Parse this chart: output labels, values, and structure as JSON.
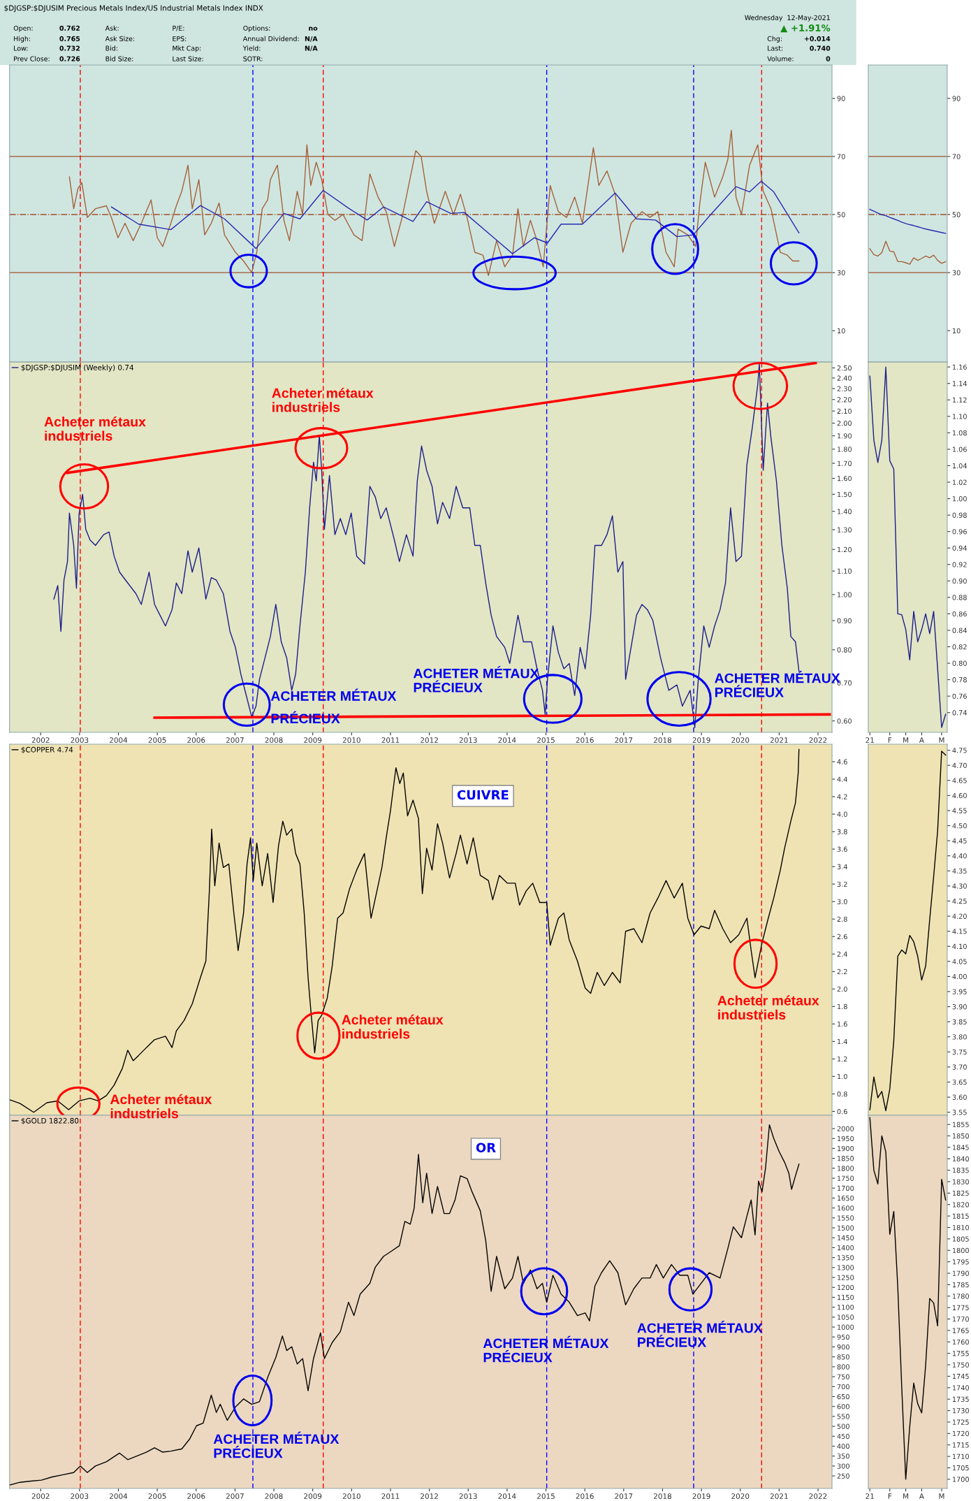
{
  "chart_data": [
    {
      "type": "line",
      "title": "$DJGSP:$DJUSIM Precious Metals Index/US Industrial Metals Index INDX",
      "annotations": [
        "Open:",
        "0.762",
        "Ask:",
        "P/E:",
        "Options:",
        "no",
        "High:",
        "0.765",
        "Ask Size:",
        "EPS:",
        "Annual Dividend:",
        "N/A",
        "Low:",
        "0.732",
        "Bid:",
        "Mkt Cap:",
        "Yield:",
        "N/A",
        "Prev Close:",
        "0.726",
        "Bid Size:",
        "Last Size:",
        "SOTR:",
        "Wednesday  12-May-2021",
        "▲ +1.91%",
        "Chg:",
        "+0.014",
        "Last:",
        "0.740",
        "Volume:",
        "0"
      ],
      "series": [
        {
          "color": "#a5603a",
          "x": [
            2002.74,
            2002.85,
            2002.96,
            2003.06,
            2003.2,
            2003.41,
            2003.69,
            2003.82,
            2003.99,
            2004.17,
            2004.38,
            2004.59,
            2004.84,
            2005.0,
            2005.14,
            2005.35,
            2005.49,
            2005.63,
            2005.79,
            2005.9,
            2006.07,
            2006.22,
            2006.39,
            2006.59,
            2006.73,
            2007.01,
            2007.22,
            2007.43,
            2007.56,
            2007.7,
            2007.84,
            2007.91,
            2008.09,
            2008.26,
            2008.4,
            2008.6,
            2008.74,
            2008.85,
            2008.95,
            2009.09,
            2009.23,
            2009.39,
            2009.57,
            2009.78,
            2010.06,
            2010.27,
            2010.47,
            2010.68,
            2010.89,
            2011.1,
            2011.3,
            2011.65,
            2011.79,
            2011.93,
            2012.13,
            2012.41,
            2012.62,
            2012.8,
            2012.97,
            2013.17,
            2013.38,
            2013.52,
            2013.73,
            2013.94,
            2014.14,
            2014.28,
            2014.42,
            2014.6,
            2014.77,
            2014.93,
            2015.11,
            2015.32,
            2015.53,
            2015.74,
            2015.94,
            2016.22,
            2016.36,
            2016.57,
            2016.78,
            2016.98,
            2017.19,
            2017.47,
            2017.68,
            2017.88,
            2018.09,
            2018.3,
            2018.4,
            2018.65,
            2018.85,
            2018.96,
            2019.1,
            2019.34,
            2019.55,
            2019.68,
            2019.77,
            2019.89,
            2020.03,
            2020.24,
            2020.45,
            2020.59,
            2020.79,
            2021.03,
            2021.21,
            2021.35,
            2021.51
          ],
          "values": [
            63,
            52,
            59,
            61,
            49,
            52,
            53,
            49,
            42,
            47,
            41,
            47,
            55,
            42,
            39,
            47,
            53,
            58,
            67,
            52,
            62,
            43,
            47,
            54,
            43,
            37,
            34,
            30,
            37,
            52,
            55,
            62,
            67,
            48,
            41,
            58,
            50,
            74,
            60,
            68,
            62,
            50,
            48,
            50,
            43,
            41,
            64,
            56,
            51,
            39,
            49,
            72,
            70,
            58,
            47,
            58,
            50,
            57,
            49,
            37,
            36,
            29,
            41,
            32,
            36,
            52,
            39,
            48,
            41,
            32,
            60,
            51,
            49,
            56,
            47,
            73,
            60,
            65,
            57,
            37,
            47,
            51,
            49,
            51,
            37,
            32,
            45,
            43,
            39,
            54,
            68,
            56,
            63,
            69,
            79,
            56,
            50,
            67,
            74,
            58,
            52,
            37,
            36,
            34,
            34
          ]
        },
        {
          "color": "#2a2ab0",
          "x": [
            2003.82,
            2004.52,
            2005.35,
            2006.11,
            2006.73,
            2007.54,
            2008.26,
            2008.67,
            2009.27,
            2009.92,
            2010.4,
            2010.82,
            2011.58,
            2011.93,
            2012.55,
            2012.9,
            2013.66,
            2014.14,
            2014.7,
            2015.04,
            2015.39,
            2015.94,
            2016.78,
            2017.33,
            2017.82,
            2018.37,
            2018.79,
            2019.2,
            2019.89,
            2020.24,
            2020.54,
            2020.86,
            2021.51
          ],
          "values": [
            52.6,
            46.7,
            44.8,
            53.1,
            48.5,
            38.3,
            50.4,
            48.5,
            58.3,
            52.2,
            48.1,
            52.6,
            47.6,
            54.4,
            50.4,
            50.7,
            42.0,
            36.5,
            42.0,
            40.2,
            46.7,
            46.7,
            57.4,
            48.5,
            48.1,
            42.4,
            43.0,
            49.4,
            59.6,
            57.8,
            61.5,
            57.8,
            43.7
          ]
        }
      ],
      "xlim": [
        2001.2,
        2022.36
      ],
      "xticks": [
        2002,
        2003,
        2004,
        2005,
        2006,
        2007,
        2008,
        2009,
        2010,
        2011,
        2012,
        2013,
        2014,
        2015,
        2016,
        2017,
        2018,
        2019,
        2020,
        2021,
        2022
      ],
      "ylim": [
        -0.8,
        101.5
      ],
      "yticks": [
        10,
        30,
        50,
        70,
        90
      ],
      "tick_labels": "y",
      "ref_lines": [
        {
          "axis": "y",
          "value": 70,
          "color": "#a0522d"
        },
        {
          "axis": "y",
          "value": 50,
          "color": "#a0522d",
          "line_style": "dashdot"
        },
        {
          "axis": "y",
          "value": 30,
          "color": "#a0522d"
        },
        {
          "axis": "x",
          "value": 2003.02,
          "color": "#ff0000",
          "line_style": "dashed"
        },
        {
          "axis": "x",
          "value": 2007.46,
          "color": "#0000ff",
          "line_style": "dashed"
        },
        {
          "axis": "x",
          "value": 2009.27,
          "color": "#ff0000",
          "line_style": "dashed"
        },
        {
          "axis": "x",
          "value": 2015.02,
          "color": "#0000ff",
          "line_style": "dashed"
        },
        {
          "axis": "x",
          "value": 2018.8,
          "color": "#0000ff",
          "line_style": "dashed"
        },
        {
          "axis": "x",
          "value": 2020.55,
          "color": "#ff0000",
          "line_style": "dashed"
        }
      ]
    },
    {
      "type": "line",
      "categories": [
        null,
        null,
        null,
        null,
        null,
        null,
        null,
        null,
        null,
        null,
        null,
        null,
        null,
        null,
        null,
        null,
        null,
        null,
        null,
        null
      ],
      "series": [
        {
          "color": "#a5603a",
          "values": [
            38.2,
            36.2,
            35.7,
            36.9,
            40.8,
            37.4,
            37.2,
            33.8,
            33.8,
            33.4,
            32.9,
            35.1,
            34.2,
            34.9,
            35.7,
            35.1,
            36.0,
            34.2,
            33.2,
            33.8
          ]
        },
        {
          "color": "#2a2ab0",
          "values": [
            51.8,
            51.2,
            50.5,
            49.9,
            49.6,
            49.0,
            48.5,
            48.0,
            47.4,
            46.9,
            46.5,
            46.2,
            45.8,
            45.4,
            45.0,
            44.7,
            44.4,
            44.1,
            43.8,
            43.5
          ]
        }
      ],
      "ylim": [
        -0.8,
        101.5
      ],
      "yticks": [
        10,
        30,
        50,
        70,
        90
      ],
      "tick_labels": "y",
      "ref_lines": [
        {
          "axis": "y",
          "value": 70,
          "color": "#a0522d"
        },
        {
          "axis": "y",
          "value": 50,
          "color": "#a0522d",
          "line_style": "dashdot"
        },
        {
          "axis": "y",
          "value": 30,
          "color": "#a0522d"
        }
      ]
    },
    {
      "type": "line",
      "log": true,
      "legend": "top left",
      "annotations": [
        "Acheter métaux\nindustriels",
        "Acheter métaux\nindustriels",
        "ACHETER MÉTAUX\nPRÉCIEUX",
        "ACHETER MÉTAUX\nPRÉCIEUX",
        "ACHETER MÉTAUX\nPRÉCIEUX"
      ],
      "series": [
        {
          "name": "$DJGSP:$DJUSIM (Weekly) 0.74",
          "color": "#1c1c8c",
          "x": [
            2002.34,
            2002.44,
            2002.52,
            2002.6,
            2002.69,
            2002.74,
            2002.85,
            2002.92,
            2002.99,
            2003.08,
            2003.16,
            2003.27,
            2003.41,
            2003.62,
            2003.76,
            2003.89,
            2004.03,
            2004.24,
            2004.45,
            2004.59,
            2004.79,
            2004.93,
            2005.07,
            2005.21,
            2005.38,
            2005.49,
            2005.63,
            2005.79,
            2005.9,
            2006.07,
            2006.25,
            2006.39,
            2006.52,
            2006.7,
            2006.87,
            2007.01,
            2007.15,
            2007.29,
            2007.43,
            2007.54,
            2007.63,
            2007.77,
            2007.91,
            2008.05,
            2008.19,
            2008.33,
            2008.46,
            2008.56,
            2008.67,
            2008.81,
            2008.92,
            2009.02,
            2009.09,
            2009.17,
            2009.23,
            2009.3,
            2009.43,
            2009.57,
            2009.71,
            2009.85,
            2009.99,
            2010.13,
            2010.33,
            2010.47,
            2010.61,
            2010.75,
            2010.89,
            2011.1,
            2011.23,
            2011.41,
            2011.58,
            2011.69,
            2011.8,
            2011.93,
            2012.07,
            2012.21,
            2012.34,
            2012.52,
            2012.69,
            2012.86,
            2013.04,
            2013.17,
            2013.31,
            2013.45,
            2013.59,
            2013.73,
            2013.94,
            2014.07,
            2014.28,
            2014.42,
            2014.63,
            2014.77,
            2014.91,
            2014.98,
            2015.04,
            2015.18,
            2015.32,
            2015.46,
            2015.6,
            2015.74,
            2015.88,
            2016.01,
            2016.15,
            2016.26,
            2016.43,
            2016.57,
            2016.71,
            2016.85,
            2016.98,
            2017.05,
            2017.19,
            2017.33,
            2017.47,
            2017.61,
            2017.75,
            2017.95,
            2018.16,
            2018.37,
            2018.51,
            2018.71,
            2018.83,
            2018.92,
            2019.06,
            2019.2,
            2019.34,
            2019.48,
            2019.62,
            2019.75,
            2019.89,
            2020.03,
            2020.17,
            2020.31,
            2020.45,
            2020.49,
            2020.59,
            2020.7,
            2020.79,
            2020.93,
            2021.07,
            2021.21,
            2021.3,
            2021.42,
            2021.51
          ],
          "values": [
            0.982,
            1.037,
            0.862,
            1.06,
            1.143,
            1.39,
            1.22,
            1.026,
            1.39,
            1.5,
            1.302,
            1.247,
            1.22,
            1.274,
            1.288,
            1.168,
            1.095,
            1.048,
            1.004,
            0.961,
            1.095,
            0.961,
            0.92,
            0.881,
            0.941,
            1.048,
            1.004,
            1.194,
            1.095,
            1.207,
            0.982,
            1.071,
            1.06,
            1.004,
            0.862,
            0.808,
            0.725,
            0.665,
            0.61,
            0.637,
            0.71,
            0.774,
            0.844,
            0.961,
            0.826,
            0.774,
            0.679,
            0.725,
            0.881,
            1.095,
            1.42,
            1.708,
            1.583,
            1.903,
            1.653,
            1.302,
            1.618,
            1.274,
            1.36,
            1.274,
            1.39,
            1.168,
            1.131,
            1.549,
            1.483,
            1.36,
            1.42,
            1.247,
            1.143,
            1.274,
            1.168,
            1.583,
            1.823,
            1.653,
            1.549,
            1.331,
            1.452,
            1.36,
            1.549,
            1.42,
            1.42,
            1.22,
            1.22,
            1.048,
            0.92,
            0.844,
            0.808,
            0.757,
            0.92,
            0.826,
            0.826,
            0.741,
            0.679,
            0.616,
            0.71,
            0.881,
            0.791,
            0.741,
            0.757,
            0.665,
            0.808,
            0.741,
            0.92,
            1.22,
            1.22,
            1.274,
            1.375,
            1.095,
            1.143,
            0.71,
            0.808,
            0.92,
            0.961,
            0.941,
            0.901,
            0.774,
            0.679,
            0.694,
            0.637,
            0.679,
            0.584,
            0.71,
            0.881,
            0.808,
            0.881,
            0.941,
            1.048,
            1.42,
            1.143,
            1.168,
            1.689,
            1.966,
            2.339,
            2.54,
            1.653,
            2.168,
            1.883,
            1.583,
            1.22,
            1.026,
            0.844,
            0.826,
            0.733
          ]
        },
        {
          "color": "#ff0000",
          "x": [
            2002.69,
            2021.94
          ],
          "values": [
            1.636,
            2.55
          ]
        },
        {
          "color": "#ff0000",
          "x": [
            2004.93,
            2022.3
          ],
          "values": [
            0.608,
            0.616
          ]
        }
      ],
      "xlim": [
        2001.2,
        2022.36
      ],
      "xticks": [
        2002,
        2003,
        2004,
        2005,
        2006,
        2007,
        2008,
        2009,
        2010,
        2011,
        2012,
        2013,
        2014,
        2015,
        2016,
        2017,
        2018,
        2019,
        2020,
        2021,
        2022
      ],
      "ylim": [
        0.573,
        2.56
      ],
      "yticks": [
        {
          "value": 0.6,
          "label": "0.60"
        },
        {
          "value": 0.7,
          "label": "0.70"
        },
        {
          "value": 0.8,
          "label": "0.80"
        },
        {
          "value": 0.9,
          "label": "0.90"
        },
        {
          "value": 1.0,
          "label": "1.00"
        },
        {
          "value": 1.1,
          "label": "1.10"
        },
        {
          "value": 1.2,
          "label": "1.20"
        },
        {
          "value": 1.3,
          "label": "1.30"
        },
        {
          "value": 1.4,
          "label": "1.40"
        },
        {
          "value": 1.5,
          "label": "1.50"
        },
        {
          "value": 1.6,
          "label": "1.60"
        },
        {
          "value": 1.7,
          "label": "1.70"
        },
        {
          "value": 1.8,
          "label": "1.80"
        },
        {
          "value": 1.9,
          "label": "1.90"
        },
        {
          "value": 2.0,
          "label": "2.00"
        },
        {
          "value": 2.1,
          "label": "2.10"
        },
        {
          "value": 2.2,
          "label": "2.20"
        },
        {
          "value": 2.3,
          "label": "2.30"
        },
        {
          "value": 2.4,
          "label": "2.40"
        },
        {
          "value": 2.5,
          "label": "2.50"
        }
      ],
      "ref_lines": [
        {
          "axis": "x",
          "value": 2003.02,
          "color": "#ff0000",
          "line_style": "dashed"
        },
        {
          "axis": "x",
          "value": 2007.46,
          "color": "#0000ff",
          "line_style": "dashed"
        },
        {
          "axis": "x",
          "value": 2009.27,
          "color": "#ff0000",
          "line_style": "dashed"
        },
        {
          "axis": "x",
          "value": 2015.02,
          "color": "#0000ff",
          "line_style": "dashed"
        },
        {
          "axis": "x",
          "value": 2018.8,
          "color": "#0000ff",
          "line_style": "dashed"
        },
        {
          "axis": "x",
          "value": 2020.55,
          "color": "#ff0000",
          "line_style": "dashed"
        }
      ]
    },
    {
      "type": "line",
      "categories": [
        "21",
        null,
        null,
        null,
        null,
        "F",
        null,
        null,
        null,
        "M",
        null,
        null,
        null,
        "A",
        null,
        null,
        null,
        null,
        "M",
        null
      ],
      "series": [
        {
          "color": "#1c1c8c",
          "values": [
            1.149,
            1.071,
            1.044,
            1.071,
            1.16,
            1.046,
            1.036,
            0.86,
            0.859,
            0.841,
            0.804,
            0.863,
            0.826,
            0.841,
            0.86,
            0.836,
            0.863,
            0.793,
            0.722,
            0.738
          ]
        }
      ],
      "ylim": [
        0.716,
        1.166
      ],
      "yticks": [
        {
          "value": 0.74,
          "label": "0.74"
        },
        {
          "value": 0.76,
          "label": "0.76"
        },
        {
          "value": 0.78,
          "label": "0.78"
        },
        {
          "value": 0.8,
          "label": "0.80"
        },
        {
          "value": 0.82,
          "label": "0.82"
        },
        {
          "value": 0.84,
          "label": "0.84"
        },
        {
          "value": 0.86,
          "label": "0.86"
        },
        {
          "value": 0.88,
          "label": "0.88"
        },
        {
          "value": 0.9,
          "label": "0.90"
        },
        {
          "value": 0.92,
          "label": "0.92"
        },
        {
          "value": 0.94,
          "label": "0.94"
        },
        {
          "value": 0.96,
          "label": "0.96"
        },
        {
          "value": 0.98,
          "label": "0.98"
        },
        {
          "value": 1.0,
          "label": "1.00"
        },
        {
          "value": 1.02,
          "label": "1.02"
        },
        {
          "value": 1.04,
          "label": "1.04"
        },
        {
          "value": 1.06,
          "label": "1.06"
        },
        {
          "value": 1.08,
          "label": "1.08"
        },
        {
          "value": 1.1,
          "label": "1.10"
        },
        {
          "value": 1.12,
          "label": "1.12"
        },
        {
          "value": 1.14,
          "label": "1.14"
        },
        {
          "value": 1.16,
          "label": "1.16"
        }
      ]
    },
    {
      "type": "line",
      "title": "CUIVRE",
      "legend": "top left",
      "annotations": [
        "Acheter métaux\nindustriels",
        "Acheter métaux\nindustriels",
        "Acheter métaux\nindustriels"
      ],
      "series": [
        {
          "name": "$COPPER 4.74",
          "color": "#000000",
          "x": [
            2001.22,
            2001.47,
            2001.82,
            2002.16,
            2002.44,
            2002.72,
            2002.99,
            2003.27,
            2003.48,
            2003.69,
            2003.89,
            2004.1,
            2004.24,
            2004.38,
            2004.52,
            2004.72,
            2004.93,
            2005.21,
            2005.38,
            2005.49,
            2005.69,
            2005.9,
            2006.11,
            2006.25,
            2006.34,
            2006.4,
            2006.48,
            2006.59,
            2006.7,
            2006.84,
            2006.97,
            2007.08,
            2007.22,
            2007.31,
            2007.4,
            2007.47,
            2007.56,
            2007.7,
            2007.84,
            2007.98,
            2008.12,
            2008.23,
            2008.33,
            2008.46,
            2008.56,
            2008.67,
            2008.78,
            2008.88,
            2008.95,
            2009.05,
            2009.14,
            2009.23,
            2009.37,
            2009.5,
            2009.64,
            2009.78,
            2009.95,
            2010.13,
            2010.33,
            2010.5,
            2010.68,
            2010.78,
            2010.89,
            2011.0,
            2011.14,
            2011.24,
            2011.33,
            2011.44,
            2011.58,
            2011.72,
            2011.82,
            2011.93,
            2012.07,
            2012.21,
            2012.34,
            2012.52,
            2012.69,
            2012.8,
            2012.97,
            2013.13,
            2013.31,
            2013.52,
            2013.63,
            2013.8,
            2014.01,
            2014.21,
            2014.32,
            2014.49,
            2014.66,
            2014.84,
            2015.02,
            2015.11,
            2015.32,
            2015.46,
            2015.6,
            2015.81,
            2016.01,
            2016.15,
            2016.32,
            2016.5,
            2016.71,
            2016.91,
            2017.05,
            2017.26,
            2017.47,
            2017.68,
            2017.88,
            2018.09,
            2018.3,
            2018.51,
            2018.65,
            2018.81,
            2018.99,
            2019.2,
            2019.34,
            2019.55,
            2019.75,
            2019.96,
            2020.17,
            2020.28,
            2020.38,
            2020.56,
            2020.72,
            2020.86,
            2021.03,
            2021.14,
            2021.3,
            2021.42,
            2021.49,
            2021.51
          ],
          "values": [
            0.73,
            0.69,
            0.59,
            0.7,
            0.72,
            0.62,
            0.72,
            0.75,
            0.72,
            0.78,
            0.9,
            1.09,
            1.3,
            1.18,
            1.24,
            1.33,
            1.42,
            1.46,
            1.33,
            1.52,
            1.64,
            1.83,
            2.13,
            2.32,
            3.12,
            3.83,
            3.18,
            3.67,
            3.39,
            3.43,
            2.87,
            2.44,
            2.87,
            3.43,
            3.73,
            3.24,
            3.67,
            3.18,
            3.55,
            2.99,
            3.64,
            3.92,
            3.76,
            3.83,
            3.55,
            3.43,
            2.87,
            2.13,
            1.76,
            1.27,
            1.64,
            1.7,
            1.89,
            2.26,
            2.81,
            2.87,
            3.15,
            3.36,
            3.55,
            2.81,
            3.18,
            3.39,
            3.73,
            4.04,
            4.53,
            4.35,
            4.47,
            3.98,
            4.16,
            3.95,
            3.09,
            3.61,
            3.36,
            3.89,
            3.67,
            3.27,
            3.55,
            3.76,
            3.43,
            3.73,
            3.3,
            3.24,
            3.02,
            3.3,
            3.21,
            3.21,
            2.96,
            3.12,
            3.21,
            2.99,
            2.99,
            2.5,
            2.81,
            2.87,
            2.56,
            2.32,
            2.01,
            1.95,
            2.19,
            2.04,
            2.19,
            2.07,
            2.66,
            2.69,
            2.53,
            2.87,
            3.04,
            3.24,
            3.04,
            3.21,
            2.81,
            2.62,
            2.72,
            2.69,
            2.9,
            2.69,
            2.53,
            2.62,
            2.81,
            2.44,
            2.13,
            2.53,
            2.81,
            3.04,
            3.36,
            3.61,
            3.92,
            4.13,
            4.47,
            4.74
          ]
        }
      ],
      "xlim": [
        2001.2,
        2022.36
      ],
      "xticks": [
        2002,
        2003,
        2004,
        2005,
        2006,
        2007,
        2008,
        2009,
        2010,
        2011,
        2012,
        2013,
        2014,
        2015,
        2016,
        2017,
        2018,
        2019,
        2020,
        2021,
        2022
      ],
      "ylim": [
        0.556,
        4.8
      ],
      "yticks": [
        0.6,
        0.8,
        {
          "value": 1,
          "label": "1.0"
        },
        1.2,
        1.4,
        1.6,
        1.8,
        {
          "value": 2,
          "label": "2.0"
        },
        2.2,
        2.4,
        2.6,
        2.8,
        {
          "value": 3,
          "label": "3.0"
        },
        3.2,
        3.4,
        3.6,
        3.8,
        {
          "value": 4,
          "label": "4.0"
        },
        4.2,
        4.4,
        4.6
      ],
      "tick_labels": "y",
      "ref_lines": [
        {
          "axis": "x",
          "value": 2003.02,
          "color": "#ff0000",
          "line_style": "dashed"
        },
        {
          "axis": "x",
          "value": 2007.46,
          "color": "#0000ff",
          "line_style": "dashed"
        },
        {
          "axis": "x",
          "value": 2009.27,
          "color": "#ff0000",
          "line_style": "dashed"
        },
        {
          "axis": "x",
          "value": 2015.02,
          "color": "#0000ff",
          "line_style": "dashed"
        },
        {
          "axis": "x",
          "value": 2018.8,
          "color": "#0000ff",
          "line_style": "dashed"
        },
        {
          "axis": "x",
          "value": 2020.55,
          "color": "#ff0000",
          "line_style": "dashed"
        }
      ]
    },
    {
      "type": "line",
      "categories": [
        null,
        null,
        null,
        null,
        null,
        null,
        null,
        null,
        null,
        null,
        null,
        null,
        null,
        null,
        null,
        null,
        null,
        null,
        null,
        null
      ],
      "series": [
        {
          "color": "#000000",
          "values": [
            3.558,
            3.667,
            3.598,
            3.619,
            3.555,
            3.627,
            3.787,
            4.067,
            4.088,
            4.075,
            4.136,
            4.115,
            4.067,
            3.988,
            4.035,
            4.187,
            4.331,
            4.483,
            4.747,
            4.734
          ]
        }
      ],
      "ylim": [
        3.54,
        4.77
      ],
      "yticks": [
        {
          "value": 3.55,
          "label": "3.55"
        },
        {
          "value": 3.6,
          "label": "3.60"
        },
        {
          "value": 3.65,
          "label": "3.65"
        },
        {
          "value": 3.7,
          "label": "3.70"
        },
        {
          "value": 3.75,
          "label": "3.75"
        },
        {
          "value": 3.8,
          "label": "3.80"
        },
        {
          "value": 3.85,
          "label": "3.85"
        },
        {
          "value": 3.9,
          "label": "3.90"
        },
        {
          "value": 3.95,
          "label": "3.95"
        },
        {
          "value": 4.0,
          "label": "4.00"
        },
        {
          "value": 4.05,
          "label": "4.05"
        },
        {
          "value": 4.1,
          "label": "4.10"
        },
        {
          "value": 4.15,
          "label": "4.15"
        },
        {
          "value": 4.2,
          "label": "4.20"
        },
        {
          "value": 4.25,
          "label": "4.25"
        },
        {
          "value": 4.3,
          "label": "4.30"
        },
        {
          "value": 4.35,
          "label": "4.35"
        },
        {
          "value": 4.4,
          "label": "4.40"
        },
        {
          "value": 4.45,
          "label": "4.45"
        },
        {
          "value": 4.5,
          "label": "4.50"
        },
        {
          "value": 4.55,
          "label": "4.55"
        },
        {
          "value": 4.6,
          "label": "4.60"
        },
        {
          "value": 4.65,
          "label": "4.65"
        },
        {
          "value": 4.7,
          "label": "4.70"
        },
        {
          "value": 4.75,
          "label": "4.75"
        }
      ],
      "tick_labels": "y"
    },
    {
      "type": "line",
      "title": "OR",
      "legend": "top left",
      "annotations": [
        "ACHETER MÉTAUX\nPRÉCIEUX",
        "ACHETER MÉTAUX\nPRÉCIEUX",
        "ACHETER MÉTAUX\nPRÉCIEUX"
      ],
      "series": [
        {
          "name": "$GOLD 1822.80",
          "color": "#000000",
          "x": [
            2001.22,
            2001.47,
            2001.75,
            2002.02,
            2002.3,
            2002.58,
            2002.85,
            2003.02,
            2003.2,
            2003.41,
            2003.69,
            2004.03,
            2004.24,
            2004.52,
            2004.72,
            2004.93,
            2005.14,
            2005.35,
            2005.63,
            2005.83,
            2006.01,
            2006.18,
            2006.39,
            2006.52,
            2006.62,
            2006.8,
            2007.01,
            2007.22,
            2007.43,
            2007.63,
            2007.84,
            2008.05,
            2008.22,
            2008.33,
            2008.46,
            2008.6,
            2008.74,
            2008.88,
            2009.02,
            2009.2,
            2009.3,
            2009.5,
            2009.71,
            2009.92,
            2010.06,
            2010.22,
            2010.47,
            2010.61,
            2010.82,
            2011.03,
            2011.23,
            2011.37,
            2011.51,
            2011.61,
            2011.72,
            2011.83,
            2011.93,
            2012.07,
            2012.21,
            2012.38,
            2012.52,
            2012.66,
            2012.8,
            2012.97,
            2013.1,
            2013.31,
            2013.45,
            2013.59,
            2013.73,
            2013.94,
            2014.14,
            2014.28,
            2014.42,
            2014.6,
            2014.77,
            2014.91,
            2015.02,
            2015.18,
            2015.39,
            2015.6,
            2015.81,
            2016.01,
            2016.12,
            2016.26,
            2016.43,
            2016.64,
            2016.85,
            2017.05,
            2017.26,
            2017.47,
            2017.68,
            2017.84,
            2018.02,
            2018.23,
            2018.44,
            2018.65,
            2018.78,
            2018.99,
            2019.2,
            2019.48,
            2019.68,
            2019.82,
            2020.03,
            2020.17,
            2020.28,
            2020.38,
            2020.47,
            2020.56,
            2020.65,
            2020.75,
            2020.86,
            2021.0,
            2021.14,
            2021.25,
            2021.32,
            2021.42,
            2021.51
          ],
          "values": [
            205,
            218,
            224,
            229,
            245,
            256,
            267,
            300,
            267,
            300,
            321,
            365,
            332,
            354,
            370,
            392,
            370,
            375,
            386,
            435,
            503,
            516,
            657,
            570,
            611,
            530,
            597,
            638,
            611,
            624,
            746,
            847,
            955,
            882,
            901,
            814,
            841,
            679,
            841,
            971,
            841,
            922,
            977,
            1125,
            1058,
            1166,
            1220,
            1302,
            1356,
            1383,
            1410,
            1532,
            1518,
            1599,
            1870,
            1626,
            1775,
            1572,
            1708,
            1572,
            1572,
            1640,
            1762,
            1748,
            1681,
            1586,
            1437,
            1180,
            1356,
            1193,
            1247,
            1356,
            1220,
            1288,
            1193,
            1220,
            1125,
            1261,
            1166,
            1125,
            1058,
            1071,
            1031,
            1207,
            1274,
            1334,
            1274,
            1112,
            1193,
            1247,
            1247,
            1315,
            1247,
            1315,
            1261,
            1261,
            1166,
            1220,
            1274,
            1247,
            1396,
            1505,
            1450,
            1559,
            1640,
            1464,
            1735,
            1681,
            1802,
            2019,
            1951,
            1884,
            1830,
            1775,
            1694,
            1762,
            1821
          ]
        }
      ],
      "xlim": [
        2001.2,
        2022.36
      ],
      "xticks": [
        2002,
        2003,
        2004,
        2005,
        2006,
        2007,
        2008,
        2009,
        2010,
        2011,
        2012,
        2013,
        2014,
        2015,
        2016,
        2017,
        2018,
        2019,
        2020,
        2021,
        2022
      ],
      "ylim": [
        187,
        2067
      ],
      "yticks": [
        250,
        300,
        350,
        400,
        450,
        500,
        550,
        600,
        650,
        700,
        750,
        800,
        850,
        900,
        950,
        1000,
        1050,
        1100,
        1150,
        1200,
        1250,
        1300,
        1350,
        1400,
        1450,
        1500,
        1550,
        1600,
        1650,
        1700,
        1750,
        1800,
        1850,
        1900,
        1950,
        2000
      ],
      "ref_lines": [
        {
          "axis": "x",
          "value": 2003.02,
          "color": "#ff0000",
          "line_style": "dashed"
        },
        {
          "axis": "x",
          "value": 2007.46,
          "color": "#0000ff",
          "line_style": "dashed"
        },
        {
          "axis": "x",
          "value": 2009.27,
          "color": "#ff0000",
          "line_style": "dashed"
        },
        {
          "axis": "x",
          "value": 2015.02,
          "color": "#0000ff",
          "line_style": "dashed"
        },
        {
          "axis": "x",
          "value": 2018.8,
          "color": "#0000ff",
          "line_style": "dashed"
        },
        {
          "axis": "x",
          "value": 2020.55,
          "color": "#ff0000",
          "line_style": "dashed"
        }
      ]
    },
    {
      "type": "line",
      "categories": [
        "21",
        null,
        null,
        null,
        null,
        "F",
        null,
        null,
        null,
        "M",
        null,
        null,
        null,
        "A",
        null,
        null,
        null,
        null,
        "M",
        null
      ],
      "series": [
        {
          "color": "#000000",
          "values": [
            1858,
            1835,
            1829,
            1850,
            1843,
            1807,
            1817,
            1784,
            1740,
            1700,
            1723,
            1742,
            1733,
            1729,
            1750,
            1779,
            1777,
            1767,
            1831,
            1822
          ]
        }
      ],
      "ylim": [
        1696,
        1859
      ],
      "yticks": [
        1700,
        1705,
        1710,
        1715,
        1720,
        1725,
        1730,
        1735,
        1740,
        1745,
        1750,
        1755,
        1760,
        1765,
        1770,
        1775,
        1780,
        1785,
        1790,
        1795,
        1800,
        1805,
        1810,
        1815,
        1820,
        1825,
        1830,
        1835,
        1840,
        1845,
        1850,
        1855
      ]
    }
  ]
}
